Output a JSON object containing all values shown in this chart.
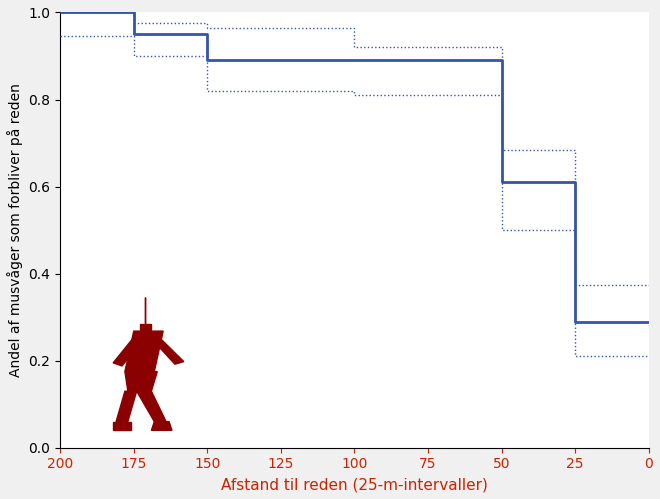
{
  "xlabel": "Afstand til reden (25-m-intervaller)",
  "ylabel": "Andel af musvåger som forbliver på reden",
  "xlim": [
    200,
    0
  ],
  "ylim": [
    0.0,
    1.0
  ],
  "xticks": [
    200,
    175,
    150,
    125,
    100,
    75,
    50,
    25,
    0
  ],
  "yticks": [
    0.0,
    0.2,
    0.4,
    0.6,
    0.8,
    1.0
  ],
  "line_color": "#3355aa",
  "ci_color": "#3355aa",
  "bg_color": "#ffffff",
  "figure_color": "#f0f0f0",
  "tick_color": "#cc2200",
  "person_color": "#8B0000",
  "main_x_coords": [
    200,
    175,
    175,
    150,
    150,
    100,
    100,
    50,
    50,
    25,
    25,
    0
  ],
  "main_y_coords": [
    1.0,
    1.0,
    0.95,
    0.95,
    0.89,
    0.89,
    0.89,
    0.89,
    0.61,
    0.61,
    0.29,
    0.29
  ],
  "ci_up_x": [
    200,
    175,
    175,
    150,
    150,
    100,
    100,
    50,
    50,
    25,
    25,
    0
  ],
  "ci_up_y": [
    1.0,
    1.0,
    0.975,
    0.975,
    0.965,
    0.965,
    0.92,
    0.92,
    0.685,
    0.685,
    0.375,
    0.375
  ],
  "ci_lo_x": [
    200,
    175,
    175,
    150,
    150,
    100,
    100,
    50,
    50,
    25,
    25,
    0
  ],
  "ci_lo_y": [
    0.945,
    0.945,
    0.9,
    0.9,
    0.82,
    0.82,
    0.81,
    0.81,
    0.5,
    0.5,
    0.21,
    0.21
  ]
}
